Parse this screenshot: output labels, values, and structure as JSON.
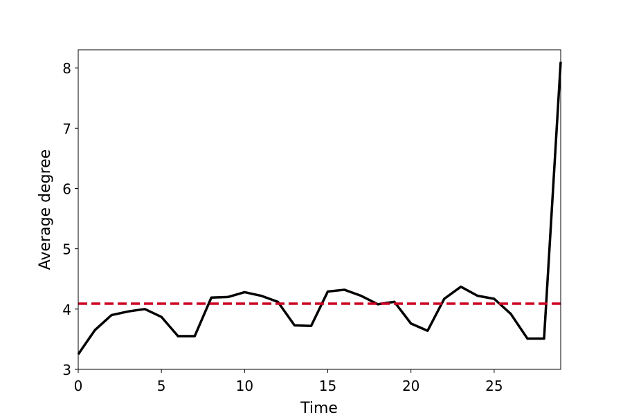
{
  "chart_data": {
    "type": "line",
    "title": "",
    "xlabel": "Time",
    "ylabel": "Average degree",
    "xlim": [
      0,
      29
    ],
    "ylim": [
      3,
      8.3
    ],
    "xticks": [
      0,
      5,
      10,
      15,
      20,
      25
    ],
    "yticks": [
      3,
      4,
      5,
      6,
      7,
      8
    ],
    "grid": false,
    "series": [
      {
        "color": "#000000",
        "style": "solid",
        "x": [
          0,
          1,
          2,
          3,
          4,
          5,
          6,
          7,
          8,
          9,
          10,
          11,
          12,
          13,
          14,
          15,
          16,
          17,
          18,
          19,
          20,
          21,
          22,
          23,
          24,
          25,
          26,
          27,
          28,
          29
        ],
        "values": [
          3.25,
          3.65,
          3.9,
          3.96,
          4.0,
          3.87,
          3.55,
          3.55,
          4.19,
          4.2,
          4.28,
          4.22,
          4.12,
          3.73,
          3.72,
          4.29,
          4.32,
          4.22,
          4.08,
          4.12,
          3.76,
          3.64,
          4.17,
          4.37,
          4.22,
          4.17,
          3.92,
          3.51,
          3.51,
          8.1
        ]
      }
    ],
    "reference_line": {
      "y": 4.09,
      "color": "#cc0022",
      "style": "dashed"
    }
  }
}
